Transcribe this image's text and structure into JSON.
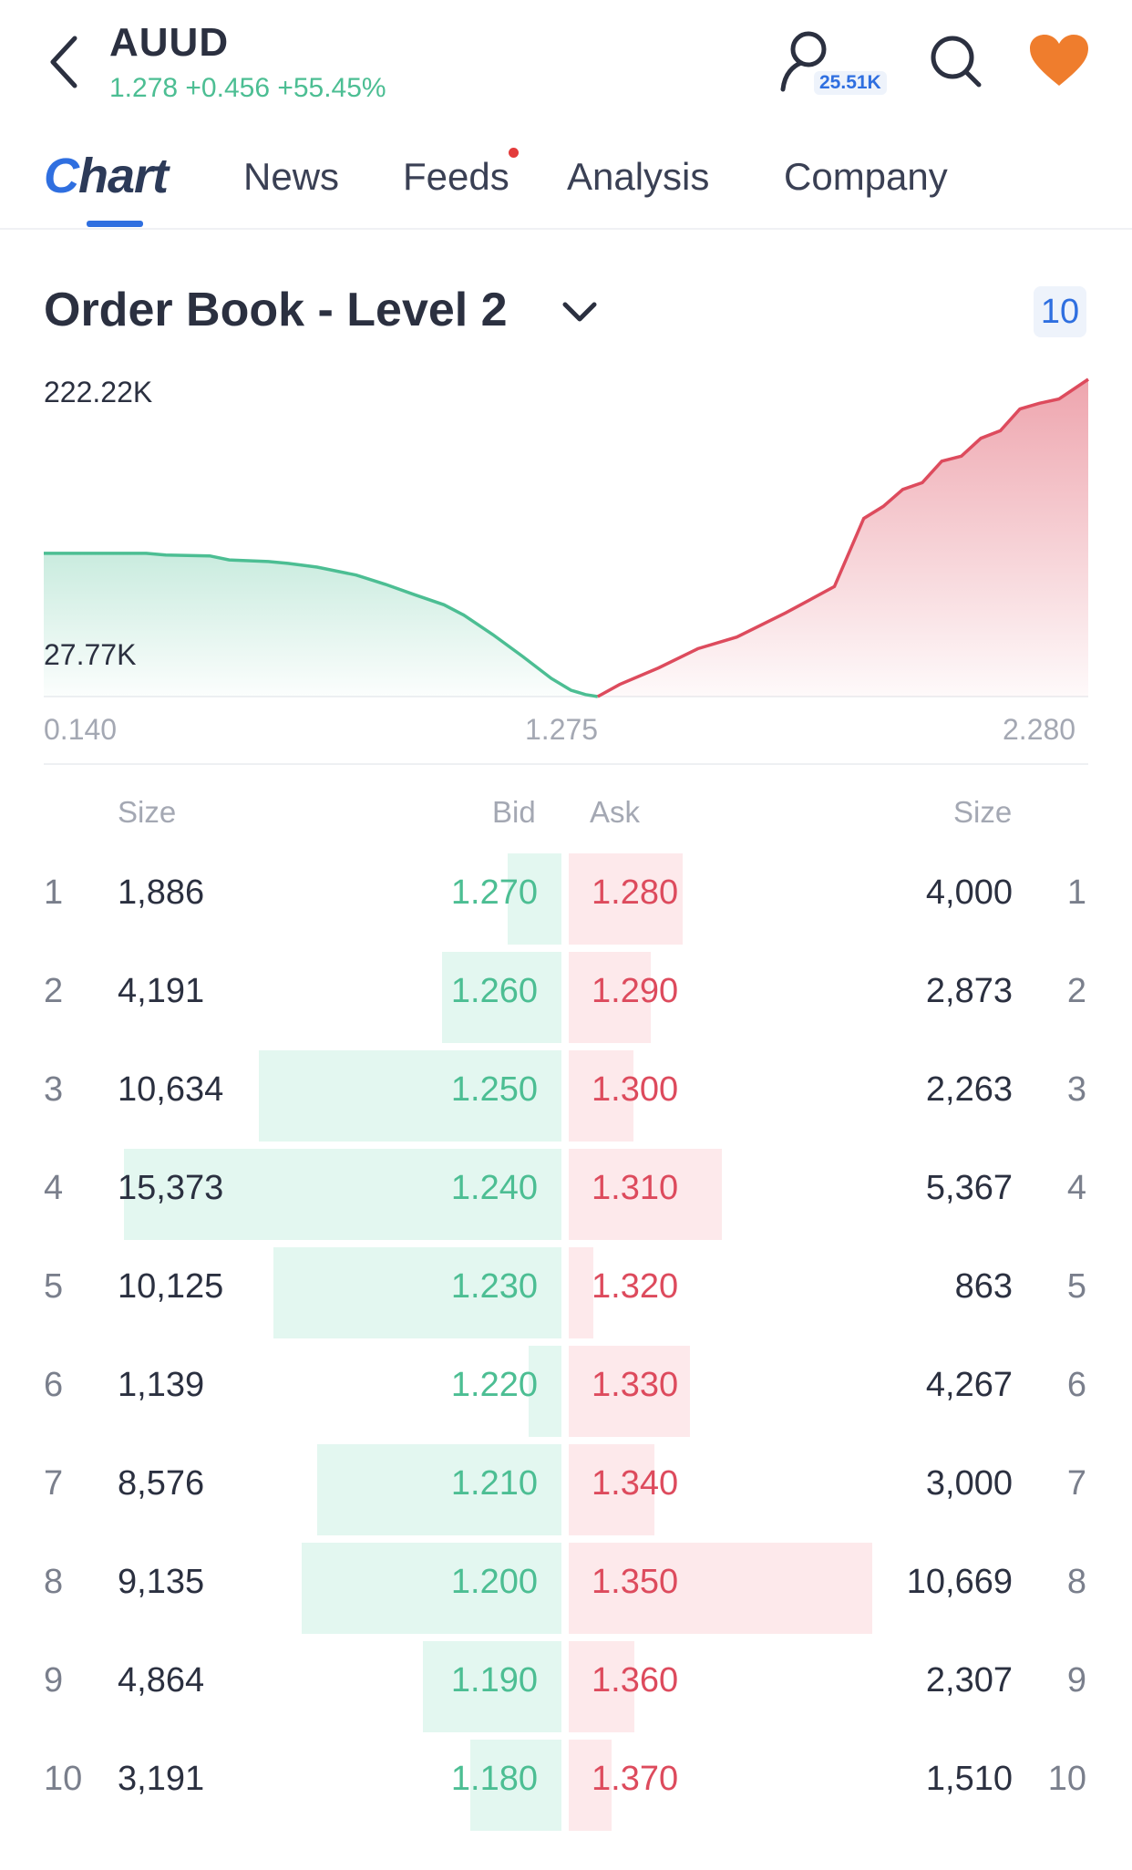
{
  "header": {
    "ticker": "AUUD",
    "quote": "1.278 +0.456 +55.45%",
    "followers": "25.51K",
    "icons": [
      "back-icon",
      "user-icon",
      "search-icon",
      "heart-icon"
    ]
  },
  "tabs": [
    {
      "label": "Chart",
      "active": true
    },
    {
      "label": "News"
    },
    {
      "label": "Feeds",
      "badge": "dot"
    },
    {
      "label": "Analysis"
    },
    {
      "label": "Company"
    }
  ],
  "order_book": {
    "title": "Order Book - Level 2",
    "depth": "10",
    "columns": {
      "bid_size": "Size",
      "bid": "Bid",
      "ask": "Ask",
      "ask_size": "Size"
    },
    "rows": [
      {
        "idx": "1",
        "bid_size": "1,886",
        "bid": "1.270",
        "ask": "1.280",
        "ask_size": "4,000"
      },
      {
        "idx": "2",
        "bid_size": "4,191",
        "bid": "1.260",
        "ask": "1.290",
        "ask_size": "2,873"
      },
      {
        "idx": "3",
        "bid_size": "10,634",
        "bid": "1.250",
        "ask": "1.300",
        "ask_size": "2,263"
      },
      {
        "idx": "4",
        "bid_size": "15,373",
        "bid": "1.240",
        "ask": "1.310",
        "ask_size": "5,367"
      },
      {
        "idx": "5",
        "bid_size": "10,125",
        "bid": "1.230",
        "ask": "1.320",
        "ask_size": "863"
      },
      {
        "idx": "6",
        "bid_size": "1,139",
        "bid": "1.220",
        "ask": "1.330",
        "ask_size": "4,267"
      },
      {
        "idx": "7",
        "bid_size": "8,576",
        "bid": "1.210",
        "ask": "1.340",
        "ask_size": "3,000"
      },
      {
        "idx": "8",
        "bid_size": "9,135",
        "bid": "1.200",
        "ask": "1.350",
        "ask_size": "10,669"
      },
      {
        "idx": "9",
        "bid_size": "4,864",
        "bid": "1.190",
        "ask": "1.360",
        "ask_size": "2,307"
      },
      {
        "idx": "10",
        "bid_size": "3,191",
        "bid": "1.180",
        "ask": "1.370",
        "ask_size": "1,510"
      }
    ]
  },
  "chart_data": {
    "type": "area",
    "y_max_label": "222.22K",
    "y_min_label": "27.77K",
    "x_labels": [
      "0.140",
      "1.275",
      "2.280"
    ],
    "xlim": [
      0.14,
      2.28
    ],
    "ylim": [
      0,
      222220
    ],
    "series": [
      {
        "side": "bid",
        "color": "#4cbe93",
        "x": [
          0.14,
          0.25,
          0.35,
          0.39,
          0.48,
          0.52,
          0.6,
          0.64,
          0.7,
          0.78,
          0.84,
          0.9,
          0.96,
          1.0,
          1.06,
          1.12,
          1.18,
          1.22,
          1.25,
          1.275
        ],
        "y": [
          100300,
          100300,
          100300,
          99200,
          98500,
          95700,
          94600,
          93300,
          90700,
          85100,
          78600,
          71300,
          64300,
          57200,
          43400,
          28400,
          12700,
          4500,
          1400,
          0
        ]
      },
      {
        "side": "ask",
        "color": "#dd4b5d",
        "x": [
          1.275,
          1.32,
          1.4,
          1.48,
          1.56,
          1.66,
          1.76,
          1.82,
          1.86,
          1.9,
          1.94,
          1.98,
          2.02,
          2.06,
          2.1,
          2.14,
          2.18,
          2.22,
          2.28
        ],
        "y": [
          0,
          8500,
          20100,
          33500,
          41700,
          58600,
          77100,
          124800,
          133200,
          145100,
          149800,
          164900,
          168400,
          180900,
          186200,
          201400,
          205400,
          208400,
          222200
        ]
      }
    ]
  }
}
